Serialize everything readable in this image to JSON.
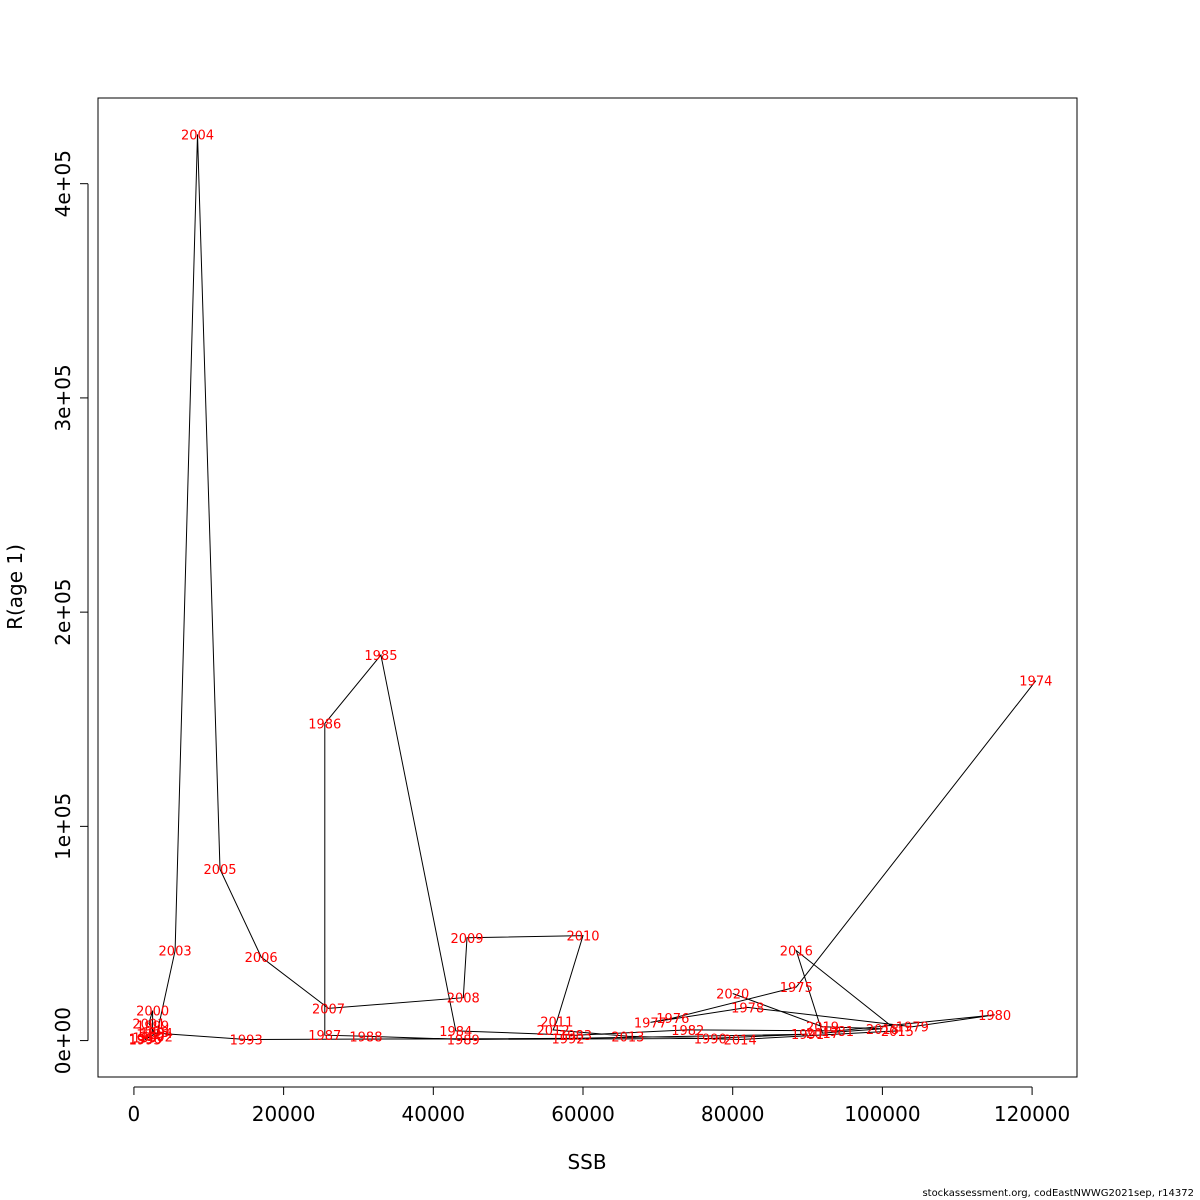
{
  "chart_data": {
    "type": "line",
    "title": "",
    "xlabel": "SSB",
    "ylabel": "R(age 1)",
    "xlim": [
      -4800,
      126000
    ],
    "ylim": [
      -17000,
      440000
    ],
    "x_ticks": [
      0,
      20000,
      40000,
      60000,
      80000,
      100000,
      120000
    ],
    "x_tick_labels": [
      "0",
      "20000",
      "40000",
      "60000",
      "80000",
      "100000",
      "120000"
    ],
    "y_ticks": [
      0,
      100000,
      200000,
      300000,
      400000
    ],
    "y_tick_labels": [
      "0e+00",
      "1e+05",
      "2e+05",
      "3e+05",
      "4e+05"
    ],
    "grid": false,
    "line_color": "#000000",
    "label_color": "#ff0000",
    "series": [
      {
        "points": [
          {
            "label": "1974",
            "x": 120500,
            "y": 168000
          },
          {
            "label": "1975",
            "x": 88500,
            "y": 25000
          },
          {
            "label": "1976",
            "x": 72000,
            "y": 10500
          },
          {
            "label": "1977",
            "x": 69000,
            "y": 8500
          },
          {
            "label": "1978",
            "x": 82000,
            "y": 15500
          },
          {
            "label": "1979",
            "x": 104000,
            "y": 6500
          },
          {
            "label": "1980",
            "x": 115000,
            "y": 12000
          },
          {
            "label": "1981",
            "x": 94000,
            "y": 4500
          },
          {
            "label": "1982",
            "x": 74000,
            "y": 5000
          },
          {
            "label": "1983",
            "x": 59000,
            "y": 2500
          },
          {
            "label": "1984",
            "x": 43000,
            "y": 4500
          },
          {
            "label": "1985",
            "x": 33000,
            "y": 180000
          },
          {
            "label": "1986",
            "x": 25500,
            "y": 148000
          },
          {
            "label": "1987",
            "x": 25500,
            "y": 2500
          },
          {
            "label": "1988",
            "x": 31000,
            "y": 2000
          },
          {
            "label": "1989",
            "x": 44000,
            "y": 500
          },
          {
            "label": "1990",
            "x": 77000,
            "y": 1000
          },
          {
            "label": "1991",
            "x": 90000,
            "y": 3000
          },
          {
            "label": "1992",
            "x": 58000,
            "y": 1000
          },
          {
            "label": "1993",
            "x": 15000,
            "y": 500
          },
          {
            "label": "1994",
            "x": 3000,
            "y": 3500
          },
          {
            "label": "1995",
            "x": 1500,
            "y": 500
          },
          {
            "label": "1996",
            "x": 1500,
            "y": 1000
          },
          {
            "label": "1997",
            "x": 2000,
            "y": 1500
          },
          {
            "label": "1998",
            "x": 2500,
            "y": 4000
          },
          {
            "label": "1999",
            "x": 2500,
            "y": 7000
          },
          {
            "label": "2000",
            "x": 2500,
            "y": 14000
          },
          {
            "label": "2001",
            "x": 2000,
            "y": 8000
          },
          {
            "label": "2002",
            "x": 3000,
            "y": 2000
          },
          {
            "label": "2003",
            "x": 5500,
            "y": 42000
          },
          {
            "label": "2004",
            "x": 8500,
            "y": 423000
          },
          {
            "label": "2005",
            "x": 11500,
            "y": 80000
          },
          {
            "label": "2006",
            "x": 17000,
            "y": 39000
          },
          {
            "label": "2007",
            "x": 26000,
            "y": 15000
          },
          {
            "label": "2008",
            "x": 44000,
            "y": 20000
          },
          {
            "label": "2009",
            "x": 44500,
            "y": 48000
          },
          {
            "label": "2010",
            "x": 60000,
            "y": 49000
          },
          {
            "label": "2011",
            "x": 56500,
            "y": 9000
          },
          {
            "label": "2012",
            "x": 56000,
            "y": 5000
          },
          {
            "label": "2013",
            "x": 66000,
            "y": 2000
          },
          {
            "label": "2014",
            "x": 81000,
            "y": 500
          },
          {
            "label": "2015",
            "x": 102000,
            "y": 4500
          },
          {
            "label": "2016",
            "x": 88500,
            "y": 42000
          },
          {
            "label": "2017",
            "x": 92000,
            "y": 3500
          },
          {
            "label": "2018",
            "x": 100000,
            "y": 5500
          },
          {
            "label": "2019",
            "x": 92000,
            "y": 6500
          },
          {
            "label": "2020",
            "x": 80000,
            "y": 22000
          }
        ]
      }
    ]
  },
  "footer": {
    "source": "stockassessment.org, codEastNWWG2021sep, r14372"
  }
}
